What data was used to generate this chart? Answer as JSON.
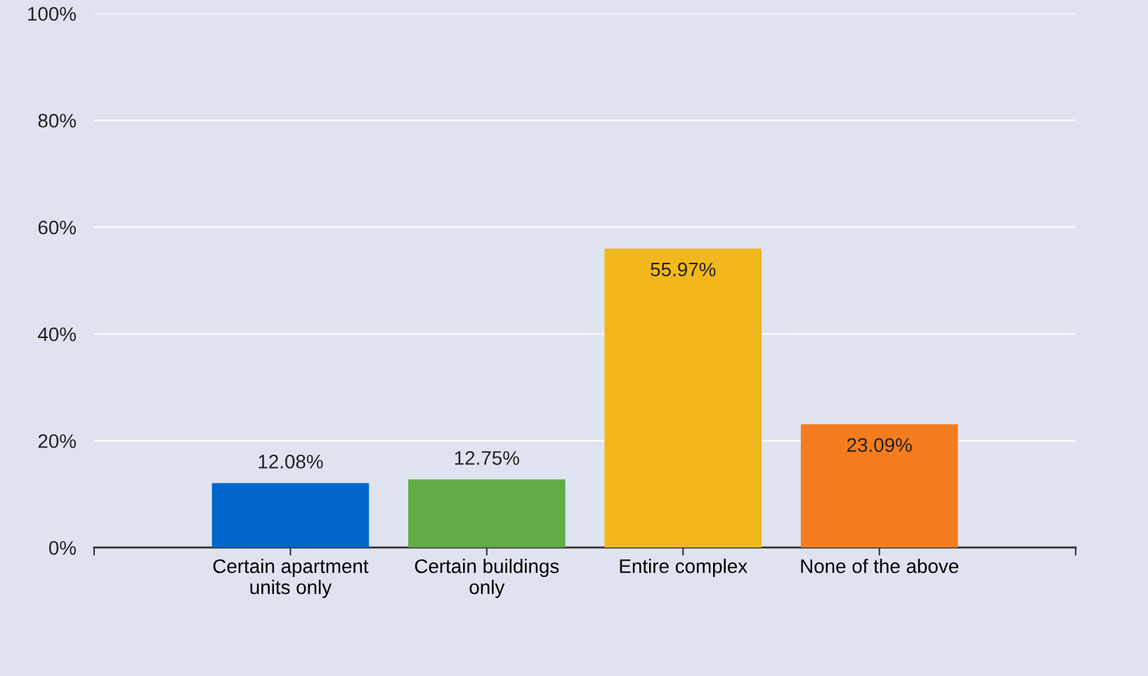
{
  "chart_data": {
    "type": "bar",
    "categories": [
      "Certain apartment\nunits only",
      "Certain buildings\nonly",
      "Entire complex",
      "None of the above"
    ],
    "values": [
      12.08,
      12.75,
      55.97,
      23.09
    ],
    "value_labels": [
      "12.08%",
      "12.75%",
      "55.97%",
      "23.09%"
    ],
    "colors": [
      "#0066cc",
      "#62ac45",
      "#f2b71c",
      "#f47d20"
    ],
    "ylim": [
      0,
      100
    ],
    "yticks": [
      {
        "value": 0,
        "label": "0%"
      },
      {
        "value": 20,
        "label": "20%"
      },
      {
        "value": 40,
        "label": "40%"
      },
      {
        "value": 60,
        "label": "60%"
      },
      {
        "value": 80,
        "label": "80%"
      },
      {
        "value": 100,
        "label": "100%"
      }
    ],
    "grid": "y"
  }
}
